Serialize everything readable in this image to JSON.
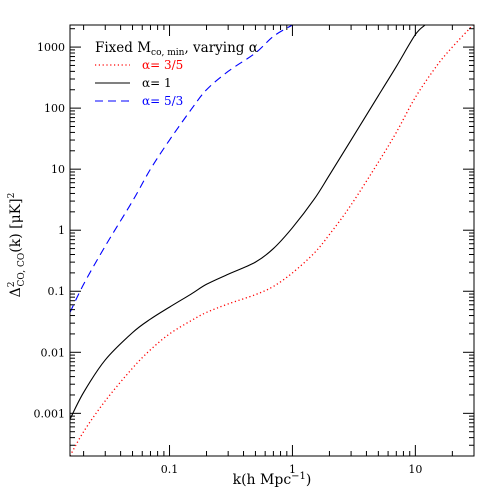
{
  "chart_data": {
    "type": "line",
    "xscale": "log",
    "yscale": "log",
    "xlim": [
      0.0155,
      30
    ],
    "ylim": [
      0.0002,
      2300
    ],
    "x_ticks": [
      {
        "value": 0.1,
        "label": "0.1"
      },
      {
        "value": 1,
        "label": "1"
      },
      {
        "value": 10,
        "label": "10"
      }
    ],
    "y_ticks": [
      {
        "value": 0.001,
        "label": "0.001"
      },
      {
        "value": 0.01,
        "label": "0.01"
      },
      {
        "value": 0.1,
        "label": "0.1"
      },
      {
        "value": 1,
        "label": "1"
      },
      {
        "value": 10,
        "label": "10"
      },
      {
        "value": 100,
        "label": "100"
      },
      {
        "value": 1000,
        "label": "1000"
      }
    ],
    "xlabel": "k(h Mpc⁻¹)",
    "ylabel": "Δ²CO, CO(k) [μK]²",
    "legend": {
      "title": "Fixed Mco, min, varying α",
      "location": "top-left"
    },
    "grid": false,
    "series": [
      {
        "name": "α= 3/5",
        "color": "#ff0000",
        "style": "dotted",
        "x": [
          0.0155,
          0.02,
          0.03,
          0.05,
          0.07,
          0.1,
          0.15,
          0.2,
          0.3,
          0.5,
          0.7,
          1,
          1.5,
          2,
          3,
          5,
          7,
          10,
          15,
          20,
          30
        ],
        "y": [
          0.0002,
          0.0005,
          0.0016,
          0.0055,
          0.011,
          0.02,
          0.033,
          0.045,
          0.062,
          0.088,
          0.12,
          0.2,
          0.42,
          0.85,
          2.6,
          13,
          40,
          150,
          500,
          1000,
          2400
        ]
      },
      {
        "name": "α= 1",
        "color": "#000000",
        "style": "solid",
        "x": [
          0.0155,
          0.02,
          0.03,
          0.05,
          0.07,
          0.1,
          0.15,
          0.2,
          0.3,
          0.5,
          0.7,
          1,
          1.5,
          2,
          3,
          5,
          7,
          10,
          12
        ],
        "y": [
          0.0008,
          0.0022,
          0.0075,
          0.021,
          0.035,
          0.055,
          0.09,
          0.13,
          0.19,
          0.3,
          0.5,
          1.1,
          3.2,
          8,
          30,
          160,
          480,
          1600,
          2300
        ]
      },
      {
        "name": "α= 5/3",
        "color": "#0000ff",
        "style": "dashed",
        "x": [
          0.0155,
          0.02,
          0.03,
          0.05,
          0.07,
          0.1,
          0.15,
          0.2,
          0.3,
          0.5,
          0.7,
          1.0
        ],
        "y": [
          0.045,
          0.13,
          0.55,
          3,
          10,
          30,
          95,
          200,
          400,
          800,
          1500,
          2300
        ]
      }
    ]
  }
}
